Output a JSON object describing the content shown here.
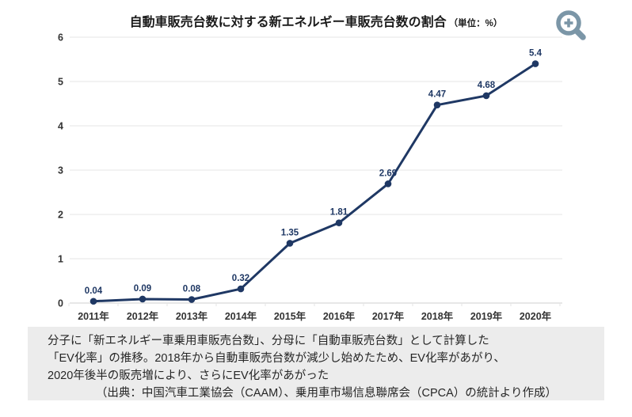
{
  "chart_data": {
    "type": "line",
    "title": "自動車販売台数に対する新エネルギー車販売台数の割合",
    "unit_label": "（単位：%）",
    "categories": [
      "2011年",
      "2012年",
      "2013年",
      "2014年",
      "2015年",
      "2016年",
      "2017年",
      "2018年",
      "2019年",
      "2020年"
    ],
    "values": [
      0.04,
      0.09,
      0.08,
      0.32,
      1.35,
      1.81,
      2.69,
      4.47,
      4.68,
      5.4
    ],
    "ylim": [
      0,
      6
    ],
    "yticks": [
      0,
      1,
      2,
      3,
      4,
      5,
      6
    ],
    "grid": true,
    "legend": "none",
    "series_color": "#1f3864",
    "data_label_color": "#1f3864",
    "grid_color": "#e4e4e4",
    "baseline_color": "#cfcfcf",
    "axis_label_color": "#333333"
  },
  "icons": {
    "zoom_in_icon": "magnifier-plus",
    "zoom_icon_color": "#7b96a7"
  },
  "caption": {
    "background": "#ececec",
    "lines": [
      "分子に「新エネルギー車乗用車販売台数」、分母に「自動車販売台数」として計算した",
      "「EV化率」の推移。2018年から自動車販売台数が減少し始めたため、EV化率があがり、",
      "2020年後半の販売増により、さらにEV化率があがった"
    ],
    "source": "（出典：中国汽車工業協会（CAAM）、乗用車市場信息聯席会（CPCA）の統計より作成）"
  }
}
